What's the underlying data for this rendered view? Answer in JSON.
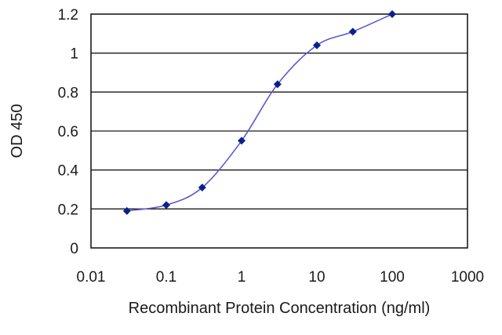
{
  "chart_data": {
    "type": "line",
    "title": "",
    "xlabel": "Recombinant Protein Concentration (ng/ml)",
    "ylabel": "OD 450",
    "x_scale": "log",
    "xlim": [
      0.01,
      1000
    ],
    "ylim": [
      0,
      1.2
    ],
    "x_ticks": [
      "0.01",
      "0.1",
      "1",
      "10",
      "100",
      "1000"
    ],
    "y_ticks": [
      "0",
      "0.2",
      "0.4",
      "0.6",
      "0.8",
      "1",
      "1.2"
    ],
    "grid": "horizontal",
    "legend": "none",
    "colors": {
      "line": "#5a5ad0",
      "marker": "#0b1f8f",
      "grid": "#1a1a1a"
    },
    "series": [
      {
        "x": [
          0.03,
          0.1,
          0.3,
          1,
          3,
          10,
          30,
          100
        ],
        "y": [
          0.19,
          0.22,
          0.31,
          0.55,
          0.84,
          1.04,
          1.11,
          1.2
        ]
      }
    ]
  }
}
